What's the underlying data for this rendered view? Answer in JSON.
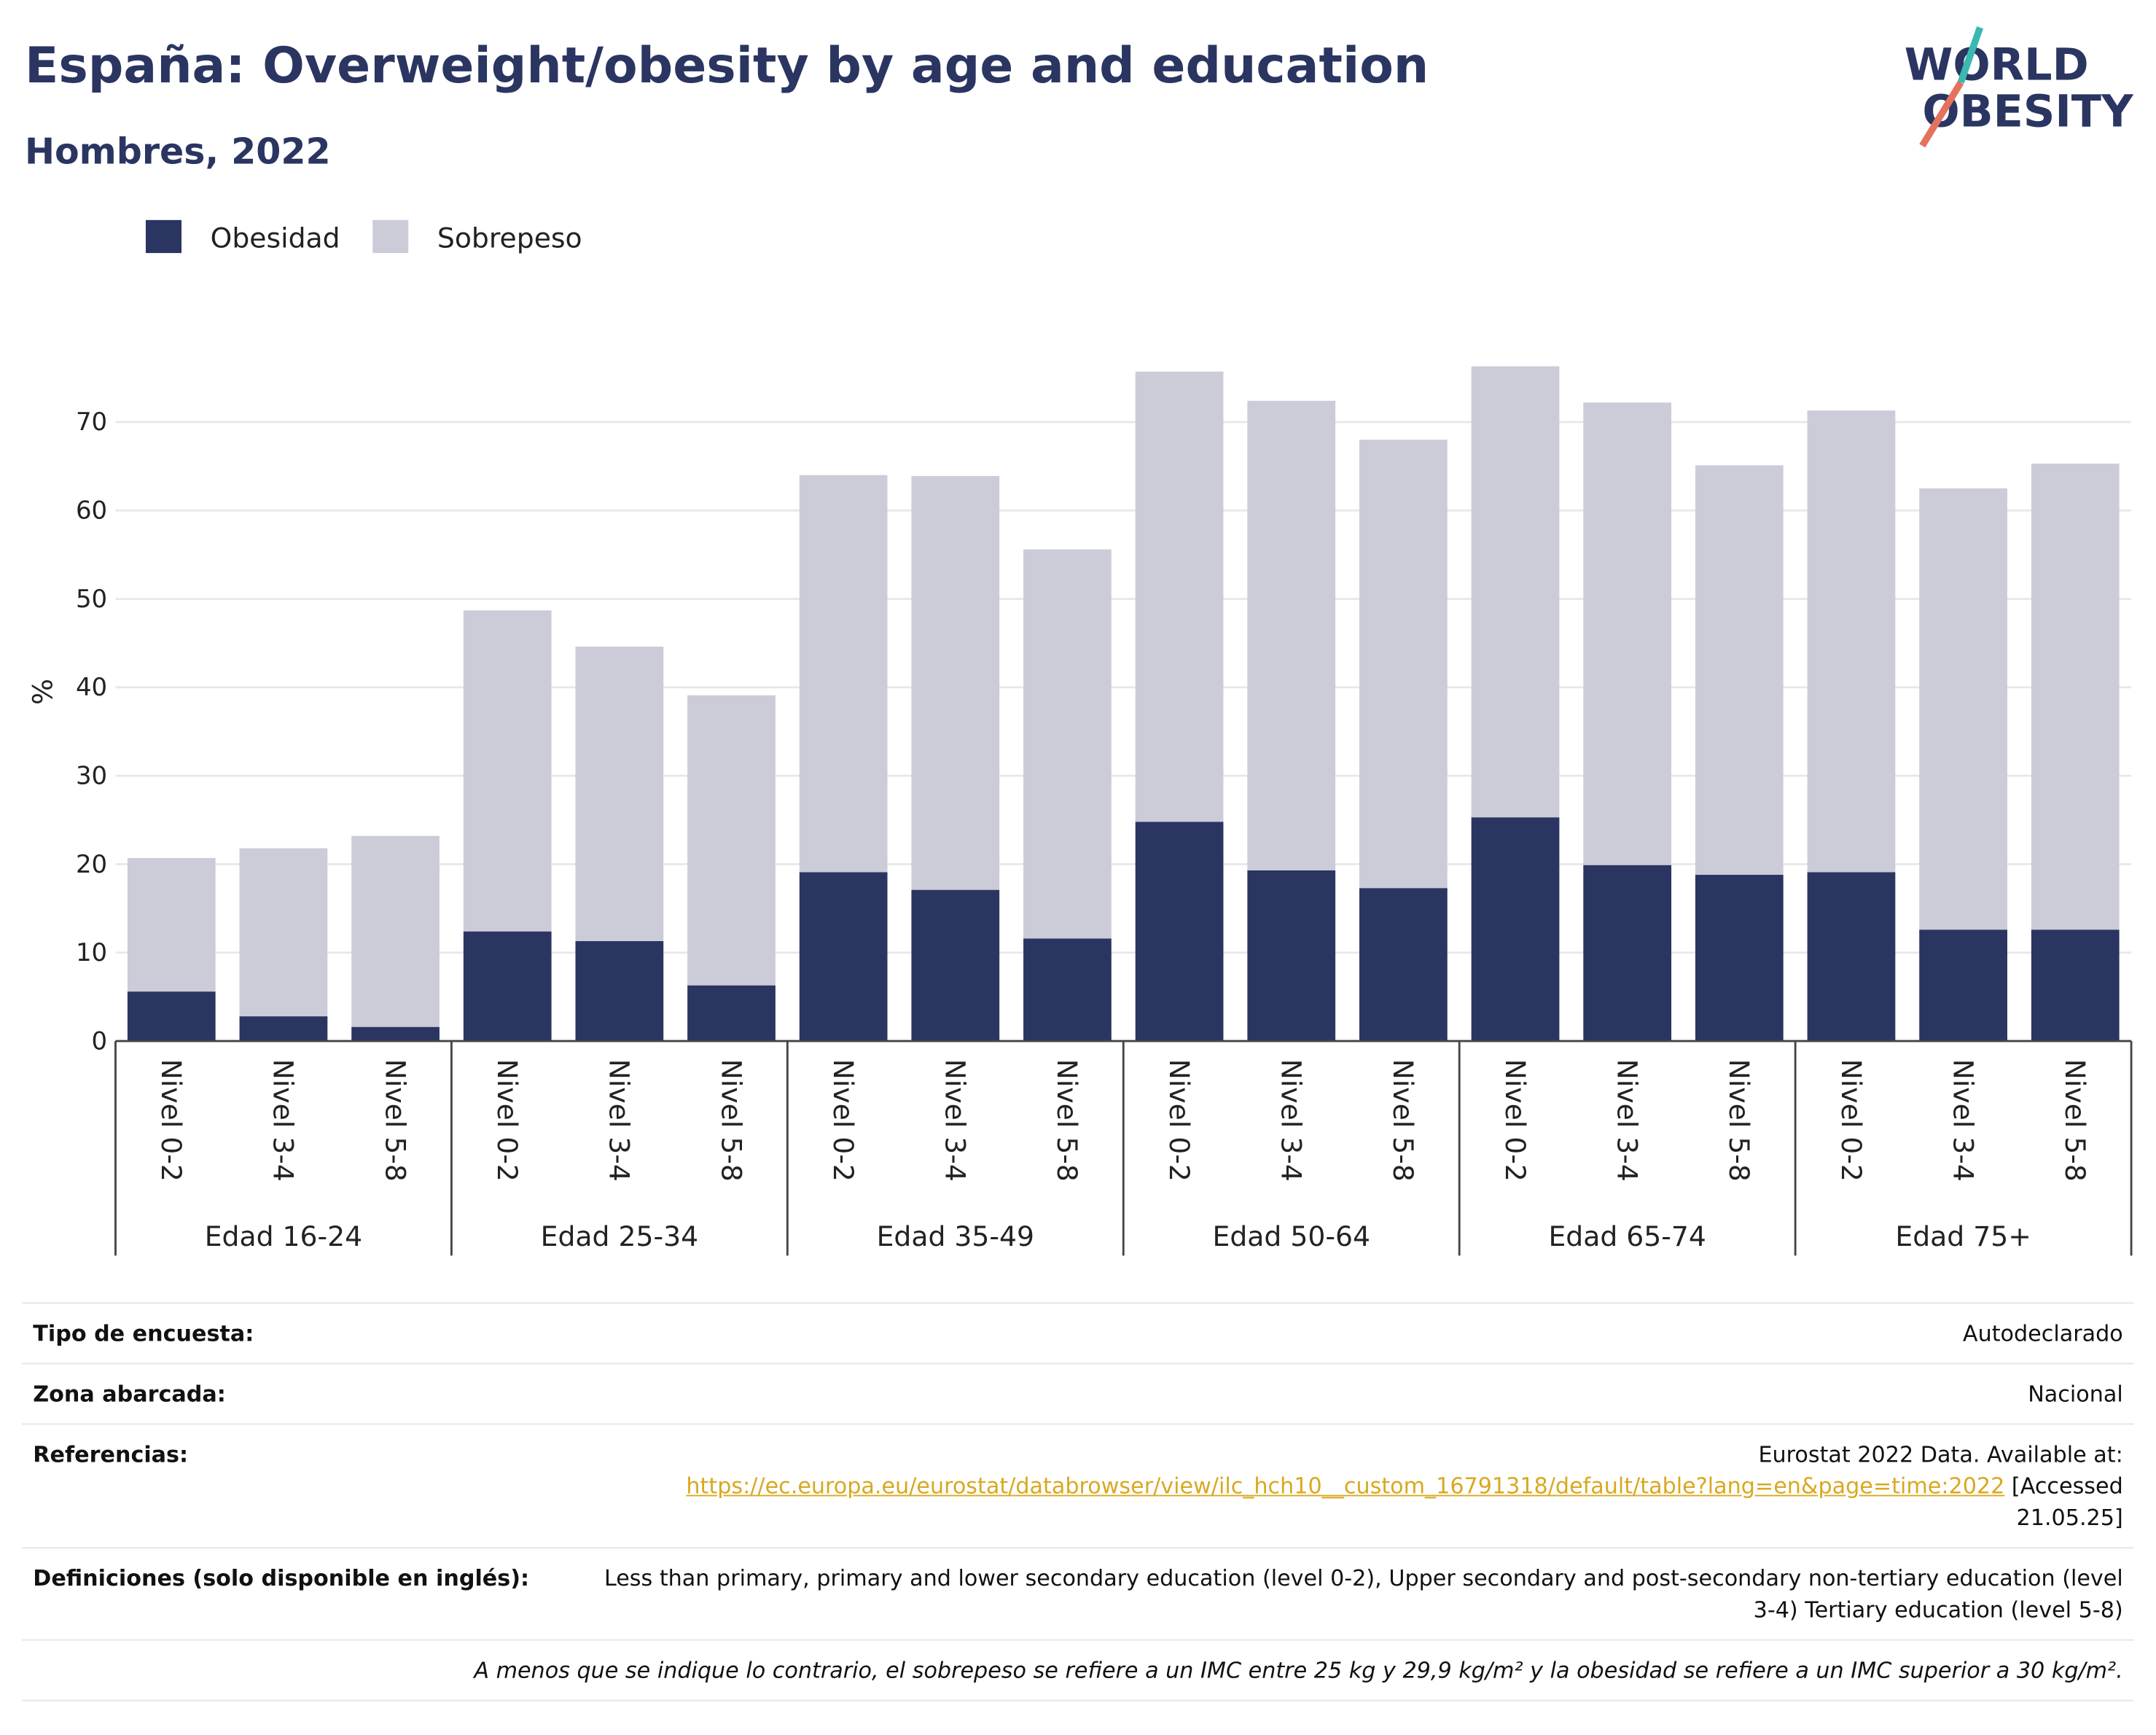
{
  "chart_data": {
    "type": "stacked-bar",
    "title": "España: Overweight/obesity by age and education",
    "subtitle": "Hombres, 2022",
    "y_label": "%",
    "categories": [
      "Nivel 0-2",
      "Nivel 3-4",
      "Nivel 5-8",
      "Nivel 0-2",
      "Nivel 3-4",
      "Nivel 5-8",
      "Nivel 0-2",
      "Nivel 3-4",
      "Nivel 5-8",
      "Nivel 0-2",
      "Nivel 3-4",
      "Nivel 5-8",
      "Nivel 0-2",
      "Nivel 3-4",
      "Nivel 5-8",
      "Nivel 0-2",
      "Nivel 3-4",
      "Nivel 5-8"
    ],
    "groups": [
      "Edad 16-24",
      "Edad 25-34",
      "Edad 35-49",
      "Edad 50-64",
      "Edad 65-74",
      "Edad 75+"
    ],
    "series": [
      {
        "name": "Obesidad",
        "color": "#2a3561",
        "values": [
          5.6,
          2.8,
          1.6,
          12.4,
          11.3,
          6.3,
          19.1,
          17.1,
          11.6,
          24.8,
          19.3,
          17.3,
          25.3,
          19.9,
          18.8,
          19.1,
          12.6,
          12.6
        ]
      },
      {
        "name": "Sobrepeso",
        "color": "#cbccd8",
        "values": [
          15.1,
          19.0,
          21.6,
          36.3,
          33.3,
          32.8,
          44.9,
          46.8,
          44.0,
          50.9,
          53.1,
          50.7,
          51.0,
          52.3,
          46.3,
          52.2,
          49.9,
          52.7
        ]
      }
    ],
    "ylim": [
      0,
      79
    ],
    "yticks": [
      0,
      10,
      20,
      30,
      40,
      50,
      60,
      70
    ],
    "grid": true,
    "legend": "top-left"
  },
  "logo": [
    "WORLD",
    "OBESITY"
  ],
  "footer": {
    "rows": [
      {
        "label": "Tipo de encuesta:",
        "value": [
          "Autodeclarado"
        ]
      },
      {
        "label": "Zona abarcada:",
        "value": [
          "Nacional"
        ]
      },
      {
        "label": "Referencias:",
        "value": [
          "Eurostat 2022 Data. Available at:",
          "https://ec.europa.eu/eurostat/databrowser/view/ilc_hch10__custom_16791318/default/table?lang=en&page=time:2022",
          "[Accessed 21.05.25]"
        ]
      },
      {
        "label": "Definiciones (solo disponible en inglés):",
        "value": [
          "Less than primary, primary and lower secondary education (level 0-2), Upper secondary and post-secondary non-tertiary education (level 3-4) Tertiary education (level 5-8)"
        ]
      }
    ],
    "note": "A menos que se indique lo contrario, el sobrepeso se refiere a un IMC entre 25 kg y 29,9 kg/m² y la obesidad se refiere a un IMC superior a 30 kg/m²."
  }
}
